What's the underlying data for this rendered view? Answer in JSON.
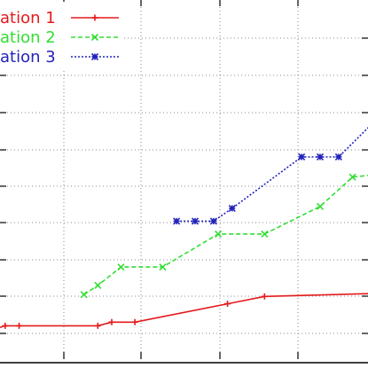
{
  "chart_data": {
    "type": "line",
    "grid": true,
    "legend_position": "top-left",
    "xlim": [
      1,
      10
    ],
    "ylim": [
      0,
      10
    ],
    "series": [
      {
        "name": "ation 1",
        "color": "#e41a1c",
        "line_style": "solid",
        "marker": "plus",
        "x": [
          1.0,
          1.4,
          1.7,
          3.4,
          3.7,
          4.2,
          6.2,
          7.0,
          10.0
        ],
        "y": [
          1.0,
          1.15,
          1.15,
          1.15,
          1.25,
          1.25,
          1.75,
          1.95,
          2.05
        ]
      },
      {
        "name": "ation 2",
        "color": "#33dd33",
        "line_style": "dashed",
        "marker": "x",
        "x": [
          3.1,
          3.4,
          3.9,
          4.8,
          6.0,
          7.0,
          8.2,
          8.9,
          10.0
        ],
        "y": [
          2.0,
          2.25,
          2.75,
          2.75,
          3.65,
          3.65,
          4.4,
          5.2,
          5.35
        ]
      },
      {
        "name": "ation 3",
        "color": "#2222bb",
        "line_style": "dotted",
        "marker": "asterisk",
        "x": [
          5.1,
          5.5,
          5.9,
          6.3,
          7.8,
          8.2,
          8.6,
          10.0
        ],
        "y": [
          4.0,
          4.0,
          4.0,
          4.35,
          5.75,
          5.75,
          5.75,
          7.5
        ]
      }
    ]
  }
}
